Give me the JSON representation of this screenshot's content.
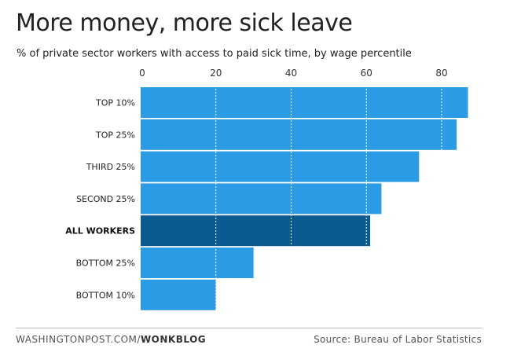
{
  "chart_data": {
    "type": "bar",
    "orientation": "horizontal",
    "title": "More money, more sick leave",
    "subtitle": "% of private sector workers with access to paid sick time, by wage percentile",
    "categories": [
      "TOP 10%",
      "TOP 25%",
      "THIRD 25%",
      "SECOND 25%",
      "ALL WORKERS",
      "BOTTOM 25%",
      "BOTTOM 10%"
    ],
    "values": [
      87,
      84,
      74,
      64,
      61,
      30,
      20
    ],
    "highlight": "ALL WORKERS",
    "xticks": [
      0,
      20,
      40,
      60,
      80
    ],
    "xlim": [
      0,
      90
    ],
    "xlabel": "",
    "ylabel": "",
    "grid": true,
    "colors": {
      "bar": "#2b9be6",
      "highlight": "#0b5a92",
      "grid": "#ffffff"
    }
  },
  "footer": {
    "source_prefix": "WASHINGTONPOST.COM/",
    "source_brand": "WONKBLOG",
    "source": "Source: Bureau of Labor Statistics"
  }
}
